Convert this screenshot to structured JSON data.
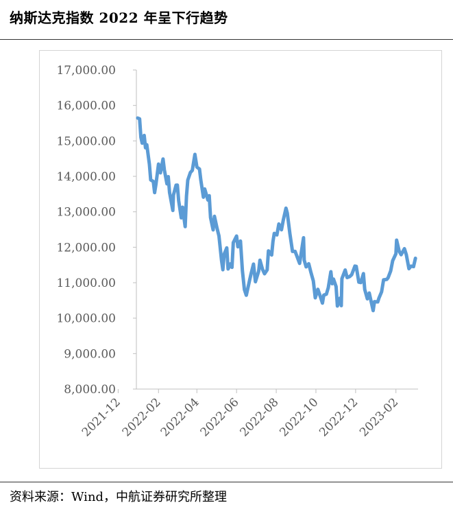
{
  "title": "纳斯达克指数 2022 年呈下行趋势",
  "source": "资料来源：Wind，中航证券研究所整理",
  "chart_data": {
    "type": "line",
    "title": "",
    "xlabel": "",
    "ylabel": "",
    "ylim": [
      8000,
      17000
    ],
    "yticks": [
      8000,
      9000,
      10000,
      11000,
      12000,
      13000,
      14000,
      15000,
      16000,
      17000
    ],
    "ytick_labels": [
      "8,000.00",
      "9,000.00",
      "10,000.00",
      "11,000.00",
      "12,000.00",
      "13,000.00",
      "14,000.00",
      "15,000.00",
      "16,000.00",
      "17,000.00"
    ],
    "xtick_labels": [
      "2021-12",
      "2022-02",
      "2022-04",
      "2022-06",
      "2022-08",
      "2022-10",
      "2022-12",
      "2023-02"
    ],
    "grid": false,
    "legend": false,
    "color": "#5B9BD5",
    "series": [
      {
        "x": [
          "2021-12-31",
          "2022-01-03",
          "2022-01-05",
          "2022-01-07",
          "2022-01-10",
          "2022-01-12",
          "2022-01-14",
          "2022-01-18",
          "2022-01-20",
          "2022-01-24",
          "2022-01-26",
          "2022-01-28",
          "2022-02-01",
          "2022-02-04",
          "2022-02-08",
          "2022-02-10",
          "2022-02-14",
          "2022-02-16",
          "2022-02-18",
          "2022-02-23",
          "2022-02-24",
          "2022-02-28",
          "2022-03-02",
          "2022-03-04",
          "2022-03-08",
          "2022-03-10",
          "2022-03-14",
          "2022-03-16",
          "2022-03-18",
          "2022-03-22",
          "2022-03-25",
          "2022-03-29",
          "2022-04-01",
          "2022-04-05",
          "2022-04-07",
          "2022-04-11",
          "2022-04-13",
          "2022-04-18",
          "2022-04-20",
          "2022-04-22",
          "2022-04-26",
          "2022-04-28",
          "2022-05-02",
          "2022-05-05",
          "2022-05-09",
          "2022-05-11",
          "2022-05-13",
          "2022-05-17",
          "2022-05-19",
          "2022-05-23",
          "2022-05-25",
          "2022-05-27",
          "2022-06-01",
          "2022-06-03",
          "2022-06-07",
          "2022-06-10",
          "2022-06-13",
          "2022-06-16",
          "2022-06-21",
          "2022-06-23",
          "2022-06-27",
          "2022-06-30",
          "2022-07-05",
          "2022-07-07",
          "2022-07-11",
          "2022-07-14",
          "2022-07-18",
          "2022-07-20",
          "2022-07-25",
          "2022-07-27",
          "2022-07-29",
          "2022-08-02",
          "2022-08-05",
          "2022-08-09",
          "2022-08-12",
          "2022-08-16",
          "2022-08-18",
          "2022-08-22",
          "2022-08-26",
          "2022-08-30",
          "2022-09-01",
          "2022-09-06",
          "2022-09-12",
          "2022-09-13",
          "2022-09-16",
          "2022-09-20",
          "2022-09-23",
          "2022-09-27",
          "2022-09-30",
          "2022-10-04",
          "2022-10-07",
          "2022-10-11",
          "2022-10-13",
          "2022-10-17",
          "2022-10-20",
          "2022-10-24",
          "2022-10-26",
          "2022-10-28",
          "2022-11-01",
          "2022-11-03",
          "2022-11-07",
          "2022-11-09",
          "2022-11-10",
          "2022-11-15",
          "2022-11-18",
          "2022-11-22",
          "2022-11-25",
          "2022-11-30",
          "2022-12-02",
          "2022-12-06",
          "2022-12-09",
          "2022-12-13",
          "2022-12-15",
          "2022-12-19",
          "2022-12-22",
          "2022-12-28",
          "2022-12-30",
          "2023-01-04",
          "2023-01-06",
          "2023-01-10",
          "2023-01-13",
          "2023-01-18",
          "2023-01-20",
          "2023-01-24",
          "2023-01-27",
          "2023-02-01",
          "2023-02-02",
          "2023-02-06",
          "2023-02-09",
          "2023-02-14",
          "2023-02-17",
          "2023-02-21",
          "2023-02-24",
          "2023-02-28",
          "2023-03-03"
        ],
        "values": [
          15645,
          15622,
          15100,
          14935,
          15153,
          14806,
          14893,
          14340,
          13900,
          13856,
          13542,
          13770,
          14346,
          14098,
          14490,
          14185,
          13790,
          13990,
          13548,
          13038,
          13473,
          13751,
          13752,
          13313,
          12830,
          13130,
          12581,
          13437,
          13894,
          14108,
          14169,
          14620,
          14261,
          14205,
          13897,
          13411,
          13643,
          13333,
          13454,
          12839,
          12490,
          12872,
          12536,
          12318,
          11624,
          11365,
          11805,
          11984,
          11388,
          11535,
          11434,
          12131,
          12316,
          12013,
          12175,
          11340,
          10809,
          10646,
          11069,
          11232,
          11524,
          11028,
          11322,
          11635,
          11373,
          11252,
          11360,
          11898,
          11782,
          12162,
          12391,
          12348,
          12657,
          12493,
          12780,
          13102,
          12965,
          12381,
          11883,
          11883,
          11785,
          11544,
          12267,
          11634,
          11448,
          11535,
          11311,
          11051,
          10575,
          10815,
          10652,
          10426,
          10649,
          10675,
          10859,
          11310,
          10970,
          11102,
          10891,
          10342,
          10565,
          10354,
          11114,
          11359,
          11146,
          11175,
          11226,
          11468,
          11461,
          11015,
          11004,
          11256,
          10811,
          10546,
          10710,
          10213,
          10466,
          10458,
          10569,
          10743,
          11079,
          11095,
          11140,
          11335,
          11622,
          11816,
          12200,
          11887,
          11789,
          11960,
          11788,
          11395,
          11466,
          11455,
          11690
        ]
      }
    ]
  }
}
